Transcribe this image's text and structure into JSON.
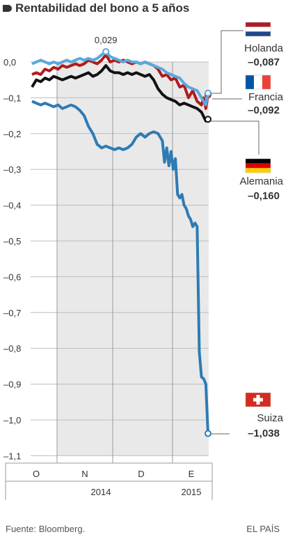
{
  "header": {
    "title": "Rentabilidad del bono a 5 años"
  },
  "footer": {
    "source": "Fuente: Bloomberg.",
    "brand": "EL PAÍS"
  },
  "chart_data": {
    "type": "line",
    "title": "Rentabilidad del bono a 5 años",
    "xlabel": "",
    "ylabel": "",
    "ylim": [
      -1.1,
      0.0
    ],
    "y_ticks": [
      0.0,
      -0.1,
      -0.2,
      -0.3,
      -0.4,
      -0.5,
      -0.6,
      -0.7,
      -0.8,
      -0.9,
      -1.0,
      -1.1
    ],
    "y_tick_labels": [
      "0,0",
      "–0,1",
      "–0,2",
      "–0,3",
      "–0,4",
      "–0,5",
      "–0,6",
      "–0,7",
      "–0,8",
      "–0,9",
      "–1,0",
      "–1,1"
    ],
    "x_months": [
      "O",
      "N",
      "D",
      "E"
    ],
    "x_years": [
      "2014",
      "2015"
    ],
    "grid": true,
    "annotation": {
      "label": "0,029",
      "series": "Holanda",
      "value": 0.029
    },
    "series": [
      {
        "name": "Suiza",
        "last_label": "–1,038",
        "last_value": -1.038,
        "color": "#2e7bb4",
        "flag": "suiza-flag",
        "points": [
          [
            0,
            -0.11
          ],
          [
            2,
            -0.115
          ],
          [
            4,
            -0.12
          ],
          [
            6,
            -0.115
          ],
          [
            8,
            -0.12
          ],
          [
            10,
            -0.125
          ],
          [
            12,
            -0.12
          ],
          [
            14,
            -0.13
          ],
          [
            16,
            -0.125
          ],
          [
            18,
            -0.12
          ],
          [
            20,
            -0.125
          ],
          [
            22,
            -0.135
          ],
          [
            24,
            -0.15
          ],
          [
            26,
            -0.18
          ],
          [
            28,
            -0.2
          ],
          [
            30,
            -0.23
          ],
          [
            32,
            -0.24
          ],
          [
            34,
            -0.235
          ],
          [
            36,
            -0.24
          ],
          [
            38,
            -0.245
          ],
          [
            40,
            -0.24
          ],
          [
            42,
            -0.245
          ],
          [
            44,
            -0.24
          ],
          [
            46,
            -0.23
          ],
          [
            48,
            -0.21
          ],
          [
            50,
            -0.2
          ],
          [
            52,
            -0.21
          ],
          [
            54,
            -0.2
          ],
          [
            56,
            -0.195
          ],
          [
            58,
            -0.2
          ],
          [
            60,
            -0.22
          ],
          [
            61,
            -0.28
          ],
          [
            62,
            -0.24
          ],
          [
            63,
            -0.29
          ],
          [
            64,
            -0.25
          ],
          [
            65,
            -0.3
          ],
          [
            66,
            -0.27
          ],
          [
            67,
            -0.37
          ],
          [
            68,
            -0.38
          ],
          [
            69,
            -0.37
          ],
          [
            70,
            -0.4
          ],
          [
            71,
            -0.41
          ],
          [
            72,
            -0.43
          ],
          [
            73,
            -0.44
          ],
          [
            74,
            -0.46
          ],
          [
            75,
            -0.45
          ],
          [
            76,
            -0.46
          ],
          [
            77,
            -0.81
          ],
          [
            78,
            -0.88
          ],
          [
            79,
            -0.885
          ],
          [
            80,
            -0.9
          ],
          [
            81,
            -1.038
          ]
        ]
      },
      {
        "name": "Alemania",
        "last_label": "–0,160",
        "last_value": -0.16,
        "color": "#111111",
        "flag": "alemania-flag",
        "points": [
          [
            0,
            -0.07
          ],
          [
            2,
            -0.05
          ],
          [
            4,
            -0.055
          ],
          [
            6,
            -0.045
          ],
          [
            8,
            -0.05
          ],
          [
            10,
            -0.04
          ],
          [
            12,
            -0.045
          ],
          [
            14,
            -0.05
          ],
          [
            16,
            -0.045
          ],
          [
            18,
            -0.04
          ],
          [
            20,
            -0.045
          ],
          [
            22,
            -0.04
          ],
          [
            24,
            -0.035
          ],
          [
            26,
            -0.03
          ],
          [
            28,
            -0.04
          ],
          [
            30,
            -0.035
          ],
          [
            32,
            -0.025
          ],
          [
            34,
            -0.01
          ],
          [
            36,
            -0.025
          ],
          [
            38,
            -0.03
          ],
          [
            40,
            -0.03
          ],
          [
            42,
            -0.035
          ],
          [
            44,
            -0.03
          ],
          [
            46,
            -0.035
          ],
          [
            48,
            -0.03
          ],
          [
            50,
            -0.035
          ],
          [
            52,
            -0.04
          ],
          [
            54,
            -0.035
          ],
          [
            56,
            -0.05
          ],
          [
            58,
            -0.075
          ],
          [
            60,
            -0.09
          ],
          [
            62,
            -0.1
          ],
          [
            64,
            -0.105
          ],
          [
            66,
            -0.11
          ],
          [
            68,
            -0.12
          ],
          [
            70,
            -0.115
          ],
          [
            72,
            -0.12
          ],
          [
            74,
            -0.125
          ],
          [
            76,
            -0.13
          ],
          [
            78,
            -0.14
          ],
          [
            80,
            -0.165
          ],
          [
            81,
            -0.16
          ]
        ]
      },
      {
        "name": "Francia",
        "last_label": "–0,092",
        "last_value": -0.092,
        "color": "#b01c1c",
        "flag": "francia-flag",
        "points": [
          [
            0,
            -0.035
          ],
          [
            2,
            -0.03
          ],
          [
            4,
            -0.035
          ],
          [
            6,
            -0.02
          ],
          [
            8,
            -0.025
          ],
          [
            10,
            -0.015
          ],
          [
            12,
            -0.02
          ],
          [
            14,
            -0.01
          ],
          [
            16,
            -0.015
          ],
          [
            18,
            -0.01
          ],
          [
            20,
            -0.005
          ],
          [
            22,
            -0.01
          ],
          [
            24,
            -0.005
          ],
          [
            26,
            0.005
          ],
          [
            28,
            -0.0
          ],
          [
            30,
            -0.005
          ],
          [
            32,
            0.005
          ],
          [
            34,
            0.02
          ],
          [
            36,
            0.0
          ],
          [
            38,
            0.005
          ],
          [
            40,
            0.0
          ],
          [
            42,
            0.005
          ],
          [
            44,
            0.0
          ],
          [
            46,
            -0.005
          ],
          [
            48,
            0.0
          ],
          [
            50,
            -0.005
          ],
          [
            52,
            0.0
          ],
          [
            54,
            -0.005
          ],
          [
            56,
            -0.01
          ],
          [
            58,
            -0.02
          ],
          [
            60,
            -0.04
          ],
          [
            62,
            -0.035
          ],
          [
            64,
            -0.05
          ],
          [
            66,
            -0.045
          ],
          [
            68,
            -0.07
          ],
          [
            70,
            -0.065
          ],
          [
            72,
            -0.1
          ],
          [
            74,
            -0.08
          ],
          [
            76,
            -0.11
          ],
          [
            78,
            -0.12
          ],
          [
            79,
            -0.1
          ],
          [
            80,
            -0.13
          ],
          [
            81,
            -0.092
          ]
        ]
      },
      {
        "name": "Holanda",
        "last_label": "–0,087",
        "last_value": -0.087,
        "color": "#5aa8de",
        "flag": "holanda-flag",
        "points": [
          [
            0,
            -0.005
          ],
          [
            2,
            0.0
          ],
          [
            4,
            0.005
          ],
          [
            6,
            0.0
          ],
          [
            8,
            -0.005
          ],
          [
            10,
            0.0
          ],
          [
            12,
            -0.005
          ],
          [
            14,
            0.0
          ],
          [
            16,
            0.005
          ],
          [
            18,
            0.0
          ],
          [
            20,
            0.005
          ],
          [
            22,
            0.01
          ],
          [
            24,
            0.005
          ],
          [
            26,
            0.01
          ],
          [
            28,
            0.005
          ],
          [
            30,
            0.01
          ],
          [
            32,
            0.02
          ],
          [
            34,
            0.029
          ],
          [
            36,
            0.015
          ],
          [
            38,
            0.01
          ],
          [
            40,
            0.005
          ],
          [
            42,
            0.0
          ],
          [
            44,
            0.005
          ],
          [
            46,
            -0.0
          ],
          [
            48,
            0.0
          ],
          [
            50,
            -0.005
          ],
          [
            52,
            -0.0
          ],
          [
            54,
            -0.005
          ],
          [
            56,
            -0.01
          ],
          [
            58,
            -0.015
          ],
          [
            60,
            -0.02
          ],
          [
            62,
            -0.03
          ],
          [
            64,
            -0.035
          ],
          [
            66,
            -0.04
          ],
          [
            68,
            -0.045
          ],
          [
            70,
            -0.06
          ],
          [
            72,
            -0.07
          ],
          [
            74,
            -0.075
          ],
          [
            76,
            -0.08
          ],
          [
            78,
            -0.1
          ],
          [
            80,
            -0.12
          ],
          [
            81,
            -0.087
          ]
        ]
      }
    ]
  }
}
